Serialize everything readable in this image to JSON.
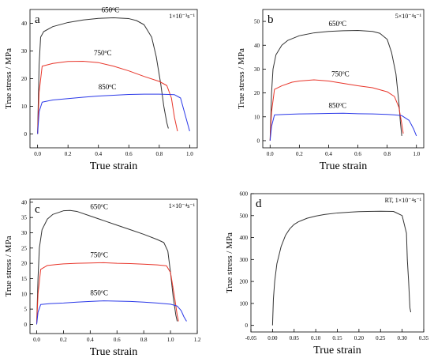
{
  "figure": {
    "panels": [
      {
        "letter": "a",
        "rate": "1×10⁻³s⁻¹",
        "xlabel": "True strain",
        "ylabel": "True stress / MPa"
      },
      {
        "letter": "b",
        "rate": "5×10⁻⁴s⁻¹",
        "xlabel": "True strain",
        "ylabel": "True stress / MPa"
      },
      {
        "letter": "c",
        "rate": "1×10⁻⁴s⁻¹",
        "xlabel": "True strain",
        "ylabel": "True stress / MPa"
      },
      {
        "letter": "d",
        "rate": "RT, 1×10⁻⁴s⁻¹",
        "xlabel": "True strain",
        "ylabel": "True stress / MPa"
      }
    ]
  },
  "chart_data": [
    {
      "type": "line",
      "panel": "a",
      "strain_rate": "1×10⁻³s⁻¹",
      "xlabel": "True strain",
      "ylabel": "True stress / MPa",
      "xlim": [
        -0.05,
        1.05
      ],
      "ylim": [
        -5,
        45
      ],
      "xticks": [
        0.0,
        0.2,
        0.4,
        0.6,
        0.8,
        1.0
      ],
      "xtick_labels": [
        "0.0",
        "0.2",
        "0.4",
        "0.6",
        "0.8",
        "1.0"
      ],
      "yticks": [
        0,
        10,
        20,
        30,
        40
      ],
      "ytick_labels": [
        "0",
        "10",
        "20",
        "30",
        "40"
      ],
      "grid": false,
      "series": [
        {
          "name": "650°C",
          "color": "#333333",
          "x": [
            0.0,
            0.01,
            0.02,
            0.04,
            0.1,
            0.2,
            0.3,
            0.4,
            0.5,
            0.6,
            0.65,
            0.7,
            0.75,
            0.78,
            0.81,
            0.83,
            0.85,
            0.86
          ],
          "y": [
            0.0,
            25.0,
            35.0,
            37.0,
            38.8,
            40.3,
            41.2,
            41.8,
            42.0,
            41.7,
            41.0,
            39.5,
            35.0,
            28.0,
            18.0,
            10.0,
            4.0,
            2.0
          ]
        },
        {
          "name": "750°C",
          "color": "#e8352a",
          "x": [
            0.0,
            0.01,
            0.03,
            0.1,
            0.2,
            0.3,
            0.4,
            0.5,
            0.6,
            0.7,
            0.8,
            0.85,
            0.88,
            0.9,
            0.92
          ],
          "y": [
            0.0,
            15.0,
            24.5,
            25.5,
            26.2,
            26.3,
            25.8,
            24.5,
            22.8,
            20.8,
            19.0,
            17.5,
            13.0,
            6.0,
            1.0
          ]
        },
        {
          "name": "850°C",
          "color": "#2a38e8",
          "x": [
            0.0,
            0.01,
            0.03,
            0.1,
            0.2,
            0.3,
            0.4,
            0.5,
            0.6,
            0.7,
            0.8,
            0.9,
            0.94,
            0.97,
            1.0
          ],
          "y": [
            0.0,
            8.0,
            11.5,
            12.3,
            12.8,
            13.3,
            13.7,
            14.0,
            14.3,
            14.4,
            14.4,
            14.2,
            13.0,
            7.0,
            1.0
          ]
        }
      ],
      "annotations": [
        {
          "text": "650",
          "series": "650°C",
          "at": [
            0.42,
            44.0
          ]
        },
        {
          "text": "750",
          "series": "750°C",
          "at": [
            0.37,
            28.5
          ]
        },
        {
          "text": "850",
          "series": "850°C",
          "at": [
            0.4,
            16.2
          ]
        }
      ]
    },
    {
      "type": "line",
      "panel": "b",
      "strain_rate": "5×10⁻⁴s⁻¹",
      "xlabel": "True strain",
      "ylabel": "True stress / MPa",
      "xlim": [
        -0.05,
        1.05
      ],
      "ylim": [
        -3,
        55
      ],
      "xticks": [
        0.0,
        0.2,
        0.4,
        0.6,
        0.8,
        1.0
      ],
      "xtick_labels": [
        "0.0",
        "0.2",
        "0.4",
        "0.6",
        "0.8",
        "1.0"
      ],
      "yticks": [
        0,
        10,
        20,
        30,
        40,
        50
      ],
      "ytick_labels": [
        "0",
        "10",
        "20",
        "30",
        "40",
        "50"
      ],
      "grid": false,
      "series": [
        {
          "name": "650°C",
          "color": "#333333",
          "x": [
            0.0,
            0.01,
            0.02,
            0.04,
            0.08,
            0.12,
            0.2,
            0.3,
            0.4,
            0.5,
            0.6,
            0.7,
            0.75,
            0.8,
            0.83,
            0.86,
            0.88,
            0.89,
            0.9
          ],
          "y": [
            0.0,
            20.0,
            30.0,
            36.0,
            40.0,
            42.0,
            44.0,
            45.2,
            45.8,
            46.1,
            46.2,
            45.8,
            45.0,
            42.5,
            37.0,
            28.0,
            16.0,
            8.0,
            2.0
          ]
        },
        {
          "name": "750°C",
          "color": "#e8352a",
          "x": [
            0.0,
            0.01,
            0.03,
            0.08,
            0.15,
            0.2,
            0.3,
            0.4,
            0.5,
            0.6,
            0.7,
            0.8,
            0.85,
            0.88,
            0.9,
            0.91
          ],
          "y": [
            0.0,
            12.0,
            21.5,
            23.0,
            24.5,
            25.0,
            25.5,
            25.0,
            24.0,
            23.0,
            22.2,
            20.5,
            18.5,
            14.0,
            7.0,
            3.0
          ]
        },
        {
          "name": "850°C",
          "color": "#2a38e8",
          "x": [
            0.0,
            0.01,
            0.03,
            0.1,
            0.2,
            0.3,
            0.4,
            0.5,
            0.6,
            0.7,
            0.8,
            0.85,
            0.9,
            0.95,
            0.98,
            1.0
          ],
          "y": [
            0.0,
            6.0,
            10.8,
            11.0,
            11.2,
            11.3,
            11.4,
            11.5,
            11.3,
            11.2,
            11.0,
            10.8,
            10.5,
            8.5,
            5.0,
            2.0
          ]
        }
      ],
      "annotations": [
        {
          "text": "650",
          "series": "650°C",
          "at": [
            0.4,
            48.0
          ]
        },
        {
          "text": "750",
          "series": "750°C",
          "at": [
            0.42,
            27.0
          ]
        },
        {
          "text": "850",
          "series": "850°C",
          "at": [
            0.4,
            13.8
          ]
        }
      ]
    },
    {
      "type": "line",
      "panel": "c",
      "strain_rate": "1×10⁻⁴s⁻¹",
      "xlabel": "True strain",
      "ylabel": "True stress / MPa",
      "xlim": [
        -0.05,
        1.2
      ],
      "ylim": [
        -3,
        41
      ],
      "xticks": [
        0.0,
        0.2,
        0.4,
        0.6,
        0.8,
        1.0,
        1.2
      ],
      "xtick_labels": [
        "0.0",
        "0.2",
        "0.4",
        "0.6",
        "0.8",
        "1.0",
        "1.2"
      ],
      "yticks": [
        0,
        5,
        10,
        15,
        20,
        25,
        30,
        35,
        40
      ],
      "ytick_labels": [
        "0",
        "5",
        "10",
        "15",
        "20",
        "25",
        "30",
        "35",
        "40"
      ],
      "grid": false,
      "series": [
        {
          "name": "650°C",
          "color": "#333333",
          "x": [
            0.0,
            0.01,
            0.02,
            0.04,
            0.08,
            0.12,
            0.2,
            0.25,
            0.3,
            0.4,
            0.5,
            0.6,
            0.7,
            0.8,
            0.9,
            0.95,
            0.98,
            1.0,
            1.02,
            1.04,
            1.05
          ],
          "y": [
            0.0,
            15.0,
            25.0,
            31.0,
            34.5,
            36.0,
            37.2,
            37.3,
            37.0,
            35.5,
            34.0,
            32.5,
            31.0,
            29.5,
            27.8,
            26.8,
            24.0,
            17.0,
            9.0,
            3.0,
            1.0
          ]
        },
        {
          "name": "750°C",
          "color": "#e8352a",
          "x": [
            0.0,
            0.01,
            0.03,
            0.08,
            0.15,
            0.2,
            0.3,
            0.4,
            0.5,
            0.6,
            0.7,
            0.8,
            0.9,
            0.97,
            1.0,
            1.03,
            1.05,
            1.06
          ],
          "y": [
            0.0,
            10.0,
            18.0,
            19.3,
            19.6,
            19.8,
            20.0,
            20.1,
            20.2,
            20.0,
            19.9,
            19.7,
            19.5,
            19.2,
            17.0,
            9.0,
            3.0,
            1.0
          ]
        },
        {
          "name": "850°C",
          "color": "#2a38e8",
          "x": [
            0.0,
            0.01,
            0.03,
            0.1,
            0.2,
            0.3,
            0.4,
            0.5,
            0.6,
            0.7,
            0.8,
            0.9,
            1.0,
            1.05,
            1.08,
            1.1,
            1.12
          ],
          "y": [
            0.0,
            4.0,
            6.5,
            6.8,
            7.0,
            7.3,
            7.5,
            7.7,
            7.6,
            7.5,
            7.3,
            7.0,
            6.6,
            6.0,
            4.5,
            2.5,
            1.0
          ]
        }
      ],
      "annotations": [
        {
          "text": "650",
          "series": "650°C",
          "at": [
            0.4,
            37.8
          ]
        },
        {
          "text": "750",
          "series": "750°C",
          "at": [
            0.4,
            22.0
          ]
        },
        {
          "text": "850",
          "series": "850°C",
          "at": [
            0.4,
            9.6
          ]
        }
      ]
    },
    {
      "type": "line",
      "panel": "d",
      "strain_rate": "RT, 1×10⁻⁴s⁻¹",
      "xlabel": "True strain",
      "ylabel": "True stress / MPa",
      "xlim": [
        -0.05,
        0.35
      ],
      "ylim": [
        -30,
        600
      ],
      "xticks": [
        -0.05,
        0.0,
        0.05,
        0.1,
        0.15,
        0.2,
        0.25,
        0.3,
        0.35
      ],
      "xtick_labels": [
        "-0.05",
        "0.00",
        "0.05",
        "0.10",
        "0.15",
        "0.20",
        "0.25",
        "0.30",
        "0.35"
      ],
      "yticks": [
        0,
        100,
        200,
        300,
        400,
        500,
        600
      ],
      "ytick_labels": [
        "0",
        "100",
        "200",
        "300",
        "400",
        "500",
        "600"
      ],
      "grid": false,
      "series": [
        {
          "name": "RT",
          "color": "#333333",
          "x": [
            0.0,
            0.002,
            0.005,
            0.01,
            0.02,
            0.03,
            0.04,
            0.05,
            0.06,
            0.08,
            0.1,
            0.12,
            0.15,
            0.18,
            0.2,
            0.22,
            0.25,
            0.28,
            0.3,
            0.305,
            0.31,
            0.312,
            0.315,
            0.318,
            0.32
          ],
          "y": [
            0.0,
            120.0,
            200.0,
            280.0,
            360.0,
            410.0,
            440.0,
            460.0,
            472.0,
            488.0,
            498.0,
            505.0,
            512.0,
            516.0,
            518.0,
            519.0,
            520.0,
            519.0,
            500.0,
            460.0,
            420.0,
            300.0,
            200.0,
            80.0,
            60.0
          ]
        }
      ],
      "annotations": []
    }
  ]
}
